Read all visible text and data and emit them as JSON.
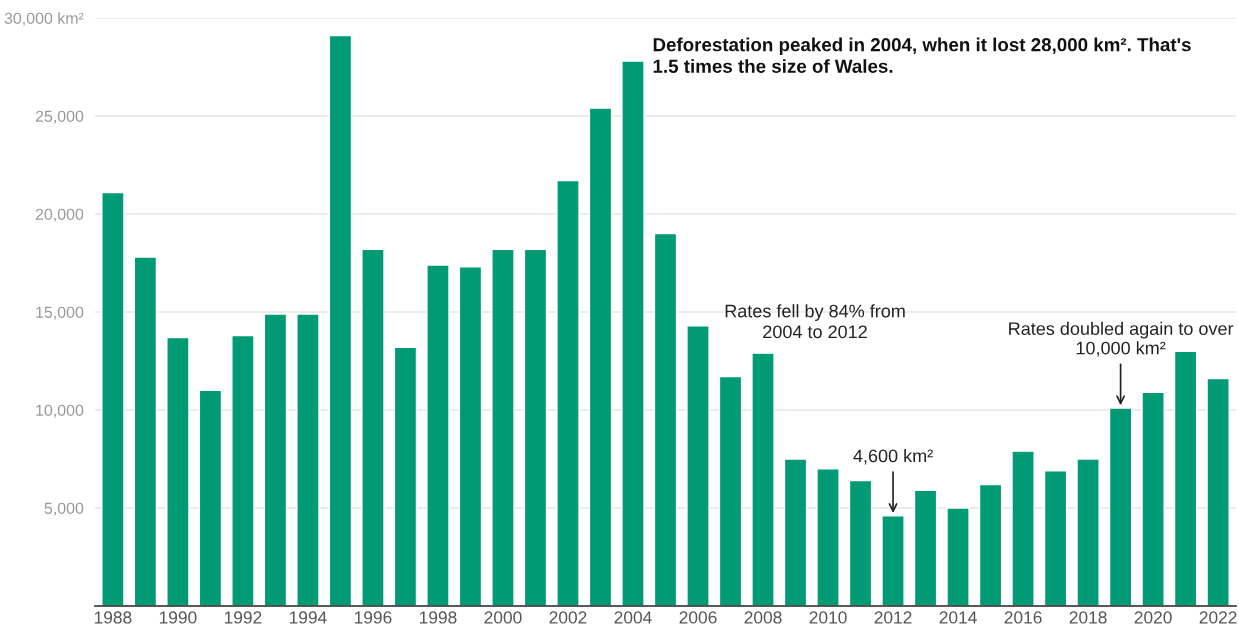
{
  "chart_data": {
    "type": "bar",
    "categories": [
      "1988",
      null,
      "1990",
      null,
      "1992",
      null,
      "1994",
      null,
      "1996",
      null,
      "1998",
      null,
      "2000",
      null,
      "2002",
      null,
      "2004",
      null,
      "2006",
      null,
      "2008",
      null,
      "2010",
      null,
      "2012",
      null,
      "2014",
      null,
      "2016",
      null,
      "2018",
      null,
      "2020",
      null,
      "2022"
    ],
    "values": [
      21100,
      17800,
      13700,
      11000,
      13800,
      14900,
      14900,
      29100,
      18200,
      13200,
      17400,
      17300,
      18200,
      18200,
      21700,
      25400,
      27800,
      19000,
      14300,
      11700,
      12900,
      7500,
      7000,
      6400,
      4600,
      5900,
      5000,
      6200,
      7900,
      6900,
      7500,
      10100,
      10900,
      13000,
      11600
    ],
    "color": "#009a74",
    "ylim": [
      0,
      30000
    ],
    "yticks": [
      {
        "value": 5000,
        "label": "5,000"
      },
      {
        "value": 10000,
        "label": "10,000"
      },
      {
        "value": 15000,
        "label": "15,000"
      },
      {
        "value": 20000,
        "label": "20,000"
      },
      {
        "value": 25000,
        "label": "25,000"
      },
      {
        "value": 30000,
        "label": "30,000 km²"
      }
    ],
    "grid": "y",
    "annotations": [
      "Deforestation peaked in 2004, when it lost 28,000 km². That's\n1.5 times the size of Wales.",
      "Rates fell by 84% from\n2004 to 2012",
      {
        "text": "4,600 km²",
        "x": "2012",
        "y": 4600
      },
      {
        "text": "Rates doubled again to over\n10,000 km²",
        "y": 10100
      }
    ]
  }
}
